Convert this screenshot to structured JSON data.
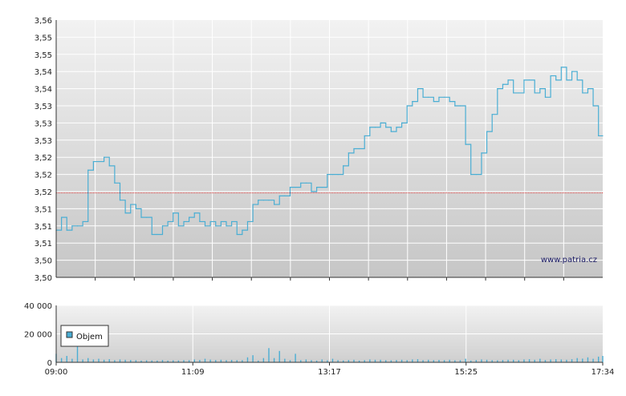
{
  "watermark": "www.patria.cz",
  "chart_data": [
    {
      "type": "line",
      "title": "",
      "xlabel": "",
      "ylabel": "",
      "ylim": [
        3.5,
        3.56
      ],
      "y_tick_labels": [
        "3,50",
        "3,50",
        "3,51",
        "3,51",
        "3,51",
        "3,52",
        "3,52",
        "3,52",
        "3,53",
        "3,53",
        "3,53",
        "3,54",
        "3,54",
        "3,55",
        "3,55",
        "3,56"
      ],
      "x_range": [
        "09:00",
        "17:34"
      ],
      "grid": true,
      "reference_line": {
        "value": 3.5197,
        "color": "#e03030"
      },
      "series_color": "#4aaed4",
      "x": [
        "09:00",
        "09:05",
        "09:10",
        "09:15",
        "09:20",
        "09:25",
        "09:30",
        "09:35",
        "09:40",
        "09:45",
        "09:50",
        "09:55",
        "10:00",
        "10:05",
        "10:10",
        "10:15",
        "10:20",
        "10:25",
        "10:30",
        "10:35",
        "10:40",
        "10:45",
        "10:50",
        "10:55",
        "11:00",
        "11:05",
        "11:10",
        "11:15",
        "11:20",
        "11:25",
        "11:30",
        "11:35",
        "11:40",
        "11:45",
        "11:50",
        "11:55",
        "12:00",
        "12:05",
        "12:10",
        "12:15",
        "12:20",
        "12:25",
        "12:30",
        "12:35",
        "12:40",
        "12:45",
        "12:50",
        "12:55",
        "13:00",
        "13:05",
        "13:10",
        "13:15",
        "13:20",
        "13:25",
        "13:30",
        "13:35",
        "13:40",
        "13:45",
        "13:50",
        "13:55",
        "14:00",
        "14:05",
        "14:10",
        "14:15",
        "14:20",
        "14:25",
        "14:30",
        "14:35",
        "14:40",
        "14:45",
        "14:50",
        "14:55",
        "15:00",
        "15:05",
        "15:10",
        "15:15",
        "15:20",
        "15:25",
        "15:30",
        "15:35",
        "15:40",
        "15:45",
        "15:50",
        "15:55",
        "16:00",
        "16:05",
        "16:10",
        "16:15",
        "16:20",
        "16:25",
        "16:30",
        "16:35",
        "16:40",
        "16:45",
        "16:50",
        "16:55",
        "17:00",
        "17:05",
        "17:10",
        "17:15",
        "17:20",
        "17:25",
        "17:30",
        "17:34"
      ],
      "values": [
        3.511,
        3.514,
        3.511,
        3.512,
        3.512,
        3.513,
        3.525,
        3.527,
        3.527,
        3.528,
        3.526,
        3.522,
        3.518,
        3.515,
        3.517,
        3.516,
        3.514,
        3.514,
        3.51,
        3.51,
        3.512,
        3.513,
        3.515,
        3.512,
        3.513,
        3.514,
        3.515,
        3.513,
        3.512,
        3.513,
        3.512,
        3.513,
        3.512,
        3.513,
        3.51,
        3.511,
        3.513,
        3.517,
        3.518,
        3.518,
        3.518,
        3.517,
        3.519,
        3.519,
        3.521,
        3.521,
        3.522,
        3.522,
        3.52,
        3.521,
        3.521,
        3.524,
        3.524,
        3.524,
        3.526,
        3.529,
        3.53,
        3.53,
        3.533,
        3.535,
        3.535,
        3.536,
        3.535,
        3.534,
        3.535,
        3.536,
        3.54,
        3.541,
        3.544,
        3.542,
        3.542,
        3.541,
        3.542,
        3.542,
        3.541,
        3.54,
        3.54,
        3.531,
        3.524,
        3.524,
        3.529,
        3.534,
        3.538,
        3.544,
        3.545,
        3.546,
        3.543,
        3.543,
        3.546,
        3.546,
        3.543,
        3.544,
        3.542,
        3.547,
        3.546,
        3.549,
        3.546,
        3.548,
        3.546,
        3.543,
        3.544,
        3.54,
        3.533,
        3.533
      ]
    },
    {
      "type": "bar",
      "title": "",
      "xlabel": "",
      "ylabel": "",
      "ylim": [
        0,
        40000
      ],
      "y_tick_labels": [
        "0",
        "20 000",
        "40 000"
      ],
      "x_tick_labels": [
        "09:00",
        "11:09",
        "13:17",
        "15:25",
        "17:34"
      ],
      "grid": true,
      "legend": {
        "entries": [
          "Objem"
        ],
        "placement": "top-left"
      },
      "series_color": "#4aaed4",
      "x": [
        "09:00",
        "09:05",
        "09:10",
        "09:15",
        "09:20",
        "09:25",
        "09:30",
        "09:35",
        "09:40",
        "09:45",
        "09:50",
        "09:55",
        "10:00",
        "10:05",
        "10:10",
        "10:15",
        "10:20",
        "10:25",
        "10:30",
        "10:35",
        "10:40",
        "10:45",
        "10:50",
        "10:55",
        "11:00",
        "11:05",
        "11:10",
        "11:15",
        "11:20",
        "11:25",
        "11:30",
        "11:35",
        "11:40",
        "11:45",
        "11:50",
        "11:55",
        "12:00",
        "12:05",
        "12:10",
        "12:15",
        "12:20",
        "12:25",
        "12:30",
        "12:35",
        "12:40",
        "12:45",
        "12:50",
        "12:55",
        "13:00",
        "13:05",
        "13:10",
        "13:15",
        "13:20",
        "13:25",
        "13:30",
        "13:35",
        "13:40",
        "13:45",
        "13:50",
        "13:55",
        "14:00",
        "14:05",
        "14:10",
        "14:15",
        "14:20",
        "14:25",
        "14:30",
        "14:35",
        "14:40",
        "14:45",
        "14:50",
        "14:55",
        "15:00",
        "15:05",
        "15:10",
        "15:15",
        "15:20",
        "15:25",
        "15:30",
        "15:35",
        "15:40",
        "15:45",
        "15:50",
        "15:55",
        "16:00",
        "16:05",
        "16:10",
        "16:15",
        "16:20",
        "16:25",
        "16:30",
        "16:35",
        "16:40",
        "16:45",
        "16:50",
        "16:55",
        "17:00",
        "17:05",
        "17:10",
        "17:15",
        "17:20",
        "17:25",
        "17:30",
        "17:34"
      ],
      "values": [
        6000,
        3000,
        4500,
        2500,
        12000,
        2000,
        3000,
        2000,
        2500,
        1800,
        2200,
        1500,
        2000,
        1800,
        1600,
        1500,
        1200,
        1400,
        1300,
        1200,
        1600,
        1200,
        1400,
        1300,
        1500,
        1500,
        2000,
        1700,
        2500,
        1900,
        1600,
        1800,
        1500,
        1700,
        1500,
        1500,
        3500,
        5000,
        1200,
        3000,
        10000,
        3000,
        8000,
        2500,
        1500,
        6000,
        1500,
        2000,
        1500,
        1200,
        2000,
        1400,
        2500,
        1500,
        1300,
        1600,
        1800,
        1200,
        1500,
        2000,
        1800,
        1800,
        1500,
        1400,
        1600,
        1800,
        1500,
        2000,
        2200,
        1500,
        1800,
        1500,
        1700,
        1500,
        1800,
        1400,
        1500,
        2500,
        1200,
        1600,
        2000,
        1800,
        1500,
        1400,
        1600,
        1800,
        1800,
        1500,
        2000,
        2200,
        1800,
        2500,
        1600,
        2000,
        2200,
        2000,
        1800,
        2200,
        3000,
        2600,
        3500,
        2500,
        4000,
        4500
      ]
    }
  ]
}
